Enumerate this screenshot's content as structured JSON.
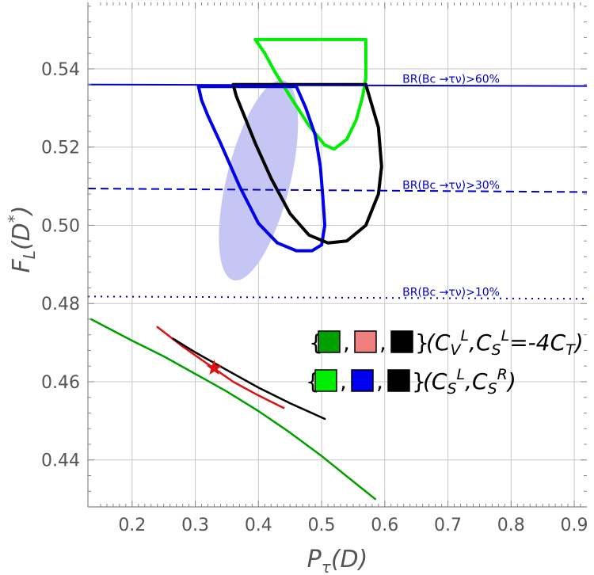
{
  "chart_data": {
    "type": "line",
    "xlabel": "Pτ(D)",
    "ylabel": "FL(D*)",
    "xlim": [
      0.13,
      0.92
    ],
    "ylim": [
      0.428,
      0.557
    ],
    "xticks": [
      0.2,
      0.3,
      0.4,
      0.5,
      0.6,
      0.7,
      0.8,
      0.9
    ],
    "yticks": [
      0.44,
      0.46,
      0.48,
      0.5,
      0.52,
      0.54
    ],
    "xtick_labels": [
      "0.2",
      "0.3",
      "0.4",
      "0.5",
      "0.6",
      "0.7",
      "0.8",
      "0.9"
    ],
    "ytick_labels": [
      "0.44",
      "0.46",
      "0.48",
      "0.50",
      "0.52",
      "0.54"
    ],
    "grid": true,
    "colors": {
      "green": "#00a000",
      "light_green": "#00ee00",
      "pink": "#f08080",
      "red": "#dd1111",
      "blue": "#0000ee",
      "black": "#000000",
      "shade": "#c6c6f4",
      "br_line": "#0000cc",
      "grid": "#c8c8c8"
    },
    "bounds": [
      {
        "label": "BR(Bc →τν)>60%",
        "style": "solid",
        "x": [
          0.13,
          0.92
        ],
        "y": [
          0.536,
          0.5356
        ]
      },
      {
        "label": "BR(Bc →τν)>30%",
        "style": "dashed",
        "x": [
          0.13,
          0.92
        ],
        "y": [
          0.5094,
          0.5085
        ]
      },
      {
        "label": "BR(Bc →τν)>10%",
        "style": "dotted",
        "x": [
          0.13,
          0.92
        ],
        "y": [
          0.4818,
          0.4812
        ]
      }
    ],
    "shaded_region": {
      "center": [
        0.4,
        0.5115
      ],
      "x": [
        0.4,
        0.425,
        0.448,
        0.462,
        0.45,
        0.428,
        0.4,
        0.372,
        0.352,
        0.338,
        0.35,
        0.374,
        0.4
      ]
    },
    "series": [
      {
        "name": "(CV^L, CS^L=-4CT) green",
        "color": "green",
        "style": "line",
        "x": [
          0.135,
          0.2,
          0.25,
          0.3,
          0.35,
          0.4,
          0.45,
          0.5,
          0.55,
          0.585
        ],
        "y": [
          0.476,
          0.4705,
          0.4665,
          0.462,
          0.4575,
          0.4525,
          0.447,
          0.441,
          0.4345,
          0.43
        ]
      },
      {
        "name": "(CV^L, CS^L=-4CT) red",
        "color": "red",
        "style": "line",
        "x": [
          0.24,
          0.28,
          0.32,
          0.36,
          0.4,
          0.44
        ],
        "y": [
          0.474,
          0.469,
          0.4645,
          0.46,
          0.4565,
          0.4533
        ]
      },
      {
        "name": "(CV^L, CS^L=-4CT) black",
        "color": "black",
        "style": "line",
        "x": [
          0.265,
          0.3,
          0.35,
          0.4,
          0.45,
          0.505
        ],
        "y": [
          0.471,
          0.4675,
          0.463,
          0.4585,
          0.4545,
          0.4505
        ]
      },
      {
        "name": "(CS^L, CS^R) light green",
        "color": "light_green",
        "style": "closed",
        "x": [
          0.395,
          0.57,
          0.57,
          0.565,
          0.555,
          0.54,
          0.52,
          0.505,
          0.48,
          0.45,
          0.425,
          0.41,
          0.395
        ],
        "y": [
          0.5475,
          0.5475,
          0.5375,
          0.533,
          0.527,
          0.522,
          0.5195,
          0.5205,
          0.5255,
          0.533,
          0.5395,
          0.544,
          0.5475
        ]
      },
      {
        "name": "(CS^L, CS^R) blue",
        "color": "blue",
        "style": "closed",
        "x": [
          0.305,
          0.46,
          0.475,
          0.49,
          0.498,
          0.502,
          0.505,
          0.5,
          0.485,
          0.46,
          0.43,
          0.4,
          0.37,
          0.34,
          0.32,
          0.31,
          0.305
        ],
        "y": [
          0.5355,
          0.5355,
          0.53,
          0.523,
          0.515,
          0.507,
          0.5,
          0.495,
          0.4935,
          0.4935,
          0.4955,
          0.5005,
          0.51,
          0.521,
          0.528,
          0.532,
          0.5355
        ]
      },
      {
        "name": "(CS^L, CS^R) black",
        "color": "black",
        "style": "closed",
        "x": [
          0.36,
          0.57,
          0.59,
          0.595,
          0.59,
          0.57,
          0.54,
          0.51,
          0.48,
          0.45,
          0.42,
          0.395,
          0.375,
          0.365,
          0.36
        ],
        "y": [
          0.536,
          0.536,
          0.525,
          0.515,
          0.508,
          0.5,
          0.496,
          0.4955,
          0.4975,
          0.503,
          0.512,
          0.521,
          0.529,
          0.533,
          0.536
        ]
      }
    ],
    "marker": {
      "shape": "star",
      "color": "red",
      "x": 0.33,
      "y": 0.4635
    },
    "legend": {
      "placement": "right",
      "rows": [
        {
          "swatches": [
            "green",
            "pink",
            "black"
          ],
          "label": "(CV^L, CS^L=-4CT)"
        },
        {
          "swatches": [
            "light_green",
            "blue",
            "black"
          ],
          "label": "(CS^L, CS^R)"
        }
      ]
    }
  }
}
